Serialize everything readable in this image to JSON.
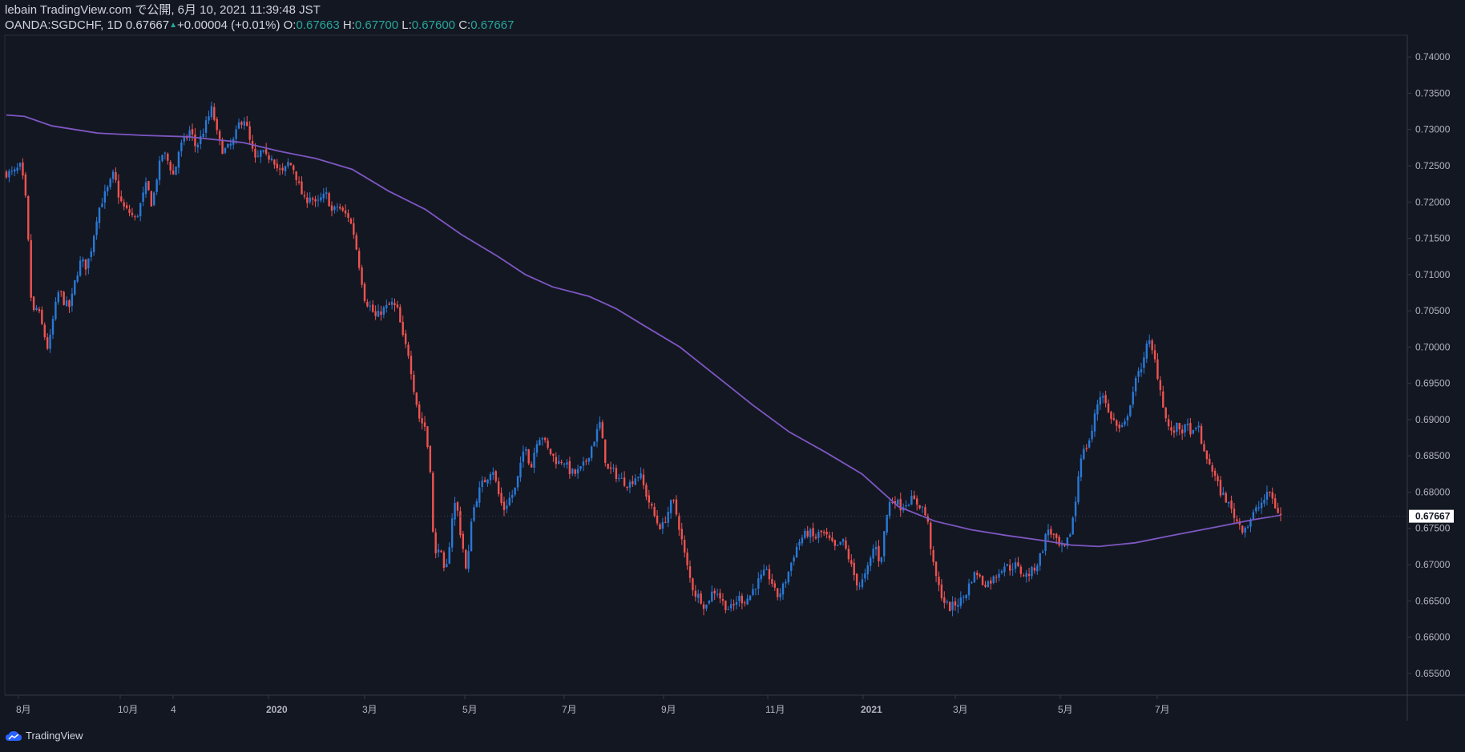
{
  "header": {
    "publish_line": "lebain TradingView.com で公開, 6月 10, 2021 11:39:48 JST",
    "symbol": "OANDA:SGDCHF, 1D",
    "last": "0.67667",
    "change": "+0.00004 (+0.01%)",
    "o_label": "O:",
    "o": "0.67663",
    "h_label": "H:",
    "h": "0.67700",
    "l_label": "L:",
    "l": "0.67600",
    "c_label": "C:",
    "c": "0.67667"
  },
  "footer": {
    "brand": "TradingView"
  },
  "colors": {
    "background": "#131722",
    "up": "#2979d6",
    "down": "#ef5350",
    "ma": "#7e57c2",
    "price_tag": "#ffffff"
  },
  "chart_data": {
    "type": "candlestick",
    "y_range": [
      0.652,
      0.743
    ],
    "y_ticks": [
      "0.74000",
      "0.73500",
      "0.73000",
      "0.72500",
      "0.72000",
      "0.71500",
      "0.71000",
      "0.70500",
      "0.70000",
      "0.69500",
      "0.69000",
      "0.68500",
      "0.68000",
      "0.67500",
      "0.67000",
      "0.66500",
      "0.66000",
      "0.65500"
    ],
    "x_labels": [
      "8月",
      "10月",
      "4",
      "2020",
      "3月",
      "5月",
      "7月",
      "9月",
      "11月",
      "2021",
      "3月",
      "5月",
      "7月"
    ],
    "last_price": "0.67667",
    "close_path": [
      [
        0,
        0.724
      ],
      [
        8,
        0.724
      ],
      [
        16,
        0.725
      ],
      [
        22,
        0.7195
      ],
      [
        28,
        0.7045
      ],
      [
        34,
        0.7055
      ],
      [
        40,
        0.7025
      ],
      [
        46,
        0.6995
      ],
      [
        52,
        0.7045
      ],
      [
        58,
        0.708
      ],
      [
        64,
        0.706
      ],
      [
        70,
        0.7055
      ],
      [
        76,
        0.7095
      ],
      [
        82,
        0.712
      ],
      [
        88,
        0.711
      ],
      [
        94,
        0.714
      ],
      [
        100,
        0.7185
      ],
      [
        106,
        0.7205
      ],
      [
        112,
        0.722
      ],
      [
        118,
        0.724
      ],
      [
        124,
        0.7205
      ],
      [
        130,
        0.719
      ],
      [
        136,
        0.7185
      ],
      [
        142,
        0.7175
      ],
      [
        148,
        0.72
      ],
      [
        154,
        0.7225
      ],
      [
        160,
        0.7195
      ],
      [
        166,
        0.724
      ],
      [
        172,
        0.727
      ],
      [
        178,
        0.7255
      ],
      [
        184,
        0.7235
      ],
      [
        190,
        0.7275
      ],
      [
        196,
        0.7285
      ],
      [
        202,
        0.73
      ],
      [
        208,
        0.7275
      ],
      [
        214,
        0.729
      ],
      [
        220,
        0.731
      ],
      [
        226,
        0.733
      ],
      [
        232,
        0.729
      ],
      [
        238,
        0.727
      ],
      [
        244,
        0.7275
      ],
      [
        250,
        0.7285
      ],
      [
        256,
        0.731
      ],
      [
        262,
        0.7315
      ],
      [
        268,
        0.728
      ],
      [
        274,
        0.7255
      ],
      [
        280,
        0.727
      ],
      [
        286,
        0.726
      ],
      [
        292,
        0.7265
      ],
      [
        298,
        0.7245
      ],
      [
        304,
        0.724
      ],
      [
        310,
        0.7255
      ],
      [
        316,
        0.7245
      ],
      [
        322,
        0.722
      ],
      [
        328,
        0.72
      ],
      [
        334,
        0.721
      ],
      [
        340,
        0.7195
      ],
      [
        346,
        0.7205
      ],
      [
        352,
        0.721
      ],
      [
        358,
        0.7185
      ],
      [
        364,
        0.7195
      ],
      [
        370,
        0.7185
      ],
      [
        376,
        0.718
      ],
      [
        382,
        0.7155
      ],
      [
        388,
        0.711
      ],
      [
        394,
        0.7065
      ],
      [
        400,
        0.7055
      ],
      [
        406,
        0.704
      ],
      [
        412,
        0.705
      ],
      [
        418,
        0.7055
      ],
      [
        424,
        0.706
      ],
      [
        430,
        0.705
      ],
      [
        436,
        0.701
      ],
      [
        442,
        0.699
      ],
      [
        448,
        0.694
      ],
      [
        454,
        0.69
      ],
      [
        460,
        0.689
      ],
      [
        466,
        0.683
      ],
      [
        470,
        0.67
      ],
      [
        474,
        0.673
      ],
      [
        478,
        0.671
      ],
      [
        482,
        0.668
      ],
      [
        486,
        0.672
      ],
      [
        490,
        0.677
      ],
      [
        494,
        0.679
      ],
      [
        498,
        0.675
      ],
      [
        502,
        0.672
      ],
      [
        506,
        0.668
      ],
      [
        510,
        0.676
      ],
      [
        516,
        0.679
      ],
      [
        522,
        0.681
      ],
      [
        528,
        0.682
      ],
      [
        534,
        0.6835
      ],
      [
        540,
        0.68
      ],
      [
        546,
        0.6775
      ],
      [
        552,
        0.679
      ],
      [
        558,
        0.68
      ],
      [
        564,
        0.683
      ],
      [
        570,
        0.687
      ],
      [
        576,
        0.683
      ],
      [
        582,
        0.687
      ],
      [
        588,
        0.688
      ],
      [
        594,
        0.686
      ],
      [
        600,
        0.685
      ],
      [
        606,
        0.684
      ],
      [
        612,
        0.6845
      ],
      [
        618,
        0.683
      ],
      [
        624,
        0.6825
      ],
      [
        630,
        0.683
      ],
      [
        636,
        0.684
      ],
      [
        642,
        0.686
      ],
      [
        648,
        0.688
      ],
      [
        652,
        0.6895
      ],
      [
        656,
        0.686
      ],
      [
        660,
        0.683
      ],
      [
        666,
        0.683
      ],
      [
        672,
        0.682
      ],
      [
        678,
        0.6815
      ],
      [
        684,
        0.681
      ],
      [
        690,
        0.682
      ],
      [
        696,
        0.6825
      ],
      [
        702,
        0.68
      ],
      [
        708,
        0.678
      ],
      [
        714,
        0.676
      ],
      [
        720,
        0.675
      ],
      [
        726,
        0.677
      ],
      [
        732,
        0.679
      ],
      [
        738,
        0.676
      ],
      [
        744,
        0.672
      ],
      [
        750,
        0.6685
      ],
      [
        756,
        0.666
      ],
      [
        762,
        0.6655
      ],
      [
        768,
        0.664
      ],
      [
        774,
        0.666
      ],
      [
        780,
        0.6665
      ],
      [
        786,
        0.665
      ],
      [
        792,
        0.664
      ],
      [
        798,
        0.664
      ],
      [
        804,
        0.6655
      ],
      [
        810,
        0.665
      ],
      [
        816,
        0.6655
      ],
      [
        822,
        0.667
      ],
      [
        828,
        0.668
      ],
      [
        834,
        0.669
      ],
      [
        840,
        0.668
      ],
      [
        846,
        0.6655
      ],
      [
        852,
        0.6665
      ],
      [
        858,
        0.6685
      ],
      [
        864,
        0.671
      ],
      [
        870,
        0.673
      ],
      [
        876,
        0.674
      ],
      [
        882,
        0.6745
      ],
      [
        888,
        0.6735
      ],
      [
        894,
        0.6745
      ],
      [
        900,
        0.674
      ],
      [
        906,
        0.673
      ],
      [
        912,
        0.672
      ],
      [
        918,
        0.6735
      ],
      [
        924,
        0.6715
      ],
      [
        930,
        0.669
      ],
      [
        936,
        0.667
      ],
      [
        942,
        0.668
      ],
      [
        948,
        0.67
      ],
      [
        954,
        0.673
      ],
      [
        960,
        0.67
      ],
      [
        966,
        0.676
      ],
      [
        970,
        0.6785
      ],
      [
        976,
        0.679
      ],
      [
        982,
        0.678
      ],
      [
        988,
        0.6785
      ],
      [
        994,
        0.679
      ],
      [
        1000,
        0.6785
      ],
      [
        1006,
        0.678
      ],
      [
        1012,
        0.676
      ],
      [
        1018,
        0.67
      ],
      [
        1024,
        0.667
      ],
      [
        1030,
        0.665
      ],
      [
        1036,
        0.664
      ],
      [
        1042,
        0.6645
      ],
      [
        1048,
        0.665
      ],
      [
        1054,
        0.666
      ],
      [
        1060,
        0.668
      ],
      [
        1066,
        0.669
      ],
      [
        1072,
        0.6675
      ],
      [
        1078,
        0.6675
      ],
      [
        1084,
        0.668
      ],
      [
        1090,
        0.669
      ],
      [
        1096,
        0.67
      ],
      [
        1102,
        0.6695
      ],
      [
        1108,
        0.67
      ],
      [
        1114,
        0.669
      ],
      [
        1120,
        0.6685
      ],
      [
        1126,
        0.669
      ],
      [
        1132,
        0.67
      ],
      [
        1138,
        0.672
      ],
      [
        1144,
        0.675
      ],
      [
        1150,
        0.674
      ],
      [
        1156,
        0.6725
      ],
      [
        1162,
        0.672
      ],
      [
        1168,
        0.674
      ],
      [
        1174,
        0.678
      ],
      [
        1180,
        0.685
      ],
      [
        1186,
        0.686
      ],
      [
        1192,
        0.688
      ],
      [
        1198,
        0.692
      ],
      [
        1204,
        0.694
      ],
      [
        1210,
        0.691
      ],
      [
        1216,
        0.69
      ],
      [
        1222,
        0.6885
      ],
      [
        1228,
        0.689
      ],
      [
        1234,
        0.692
      ],
      [
        1240,
        0.695
      ],
      [
        1246,
        0.697
      ],
      [
        1252,
        0.7
      ],
      [
        1256,
        0.7005
      ],
      [
        1262,
        0.698
      ],
      [
        1268,
        0.694
      ],
      [
        1274,
        0.69
      ],
      [
        1280,
        0.688
      ],
      [
        1286,
        0.689
      ],
      [
        1292,
        0.6885
      ],
      [
        1298,
        0.689
      ],
      [
        1304,
        0.688
      ],
      [
        1310,
        0.689
      ],
      [
        1316,
        0.685
      ],
      [
        1322,
        0.684
      ],
      [
        1328,
        0.682
      ],
      [
        1334,
        0.68
      ],
      [
        1340,
        0.679
      ],
      [
        1346,
        0.6775
      ],
      [
        1352,
        0.676
      ],
      [
        1358,
        0.675
      ],
      [
        1364,
        0.6755
      ],
      [
        1370,
        0.677
      ],
      [
        1376,
        0.678
      ],
      [
        1382,
        0.679
      ],
      [
        1388,
        0.68
      ],
      [
        1394,
        0.678
      ],
      [
        1400,
        0.6767
      ]
    ],
    "ma_path": [
      [
        0,
        0.732
      ],
      [
        20,
        0.7318
      ],
      [
        50,
        0.7305
      ],
      [
        100,
        0.7295
      ],
      [
        150,
        0.7292
      ],
      [
        200,
        0.729
      ],
      [
        260,
        0.7282
      ],
      [
        300,
        0.727
      ],
      [
        340,
        0.726
      ],
      [
        380,
        0.7245
      ],
      [
        420,
        0.7215
      ],
      [
        460,
        0.719
      ],
      [
        500,
        0.7155
      ],
      [
        540,
        0.7125
      ],
      [
        570,
        0.71
      ],
      [
        600,
        0.7083
      ],
      [
        640,
        0.707
      ],
      [
        670,
        0.7053
      ],
      [
        700,
        0.703
      ],
      [
        740,
        0.7
      ],
      [
        780,
        0.696
      ],
      [
        820,
        0.692
      ],
      [
        860,
        0.6883
      ],
      [
        900,
        0.6855
      ],
      [
        940,
        0.6825
      ],
      [
        980,
        0.678
      ],
      [
        1020,
        0.676
      ],
      [
        1060,
        0.6748
      ],
      [
        1100,
        0.674
      ],
      [
        1140,
        0.6733
      ],
      [
        1170,
        0.6727
      ],
      [
        1200,
        0.6725
      ],
      [
        1240,
        0.673
      ],
      [
        1280,
        0.674
      ],
      [
        1330,
        0.6752
      ],
      [
        1370,
        0.6762
      ],
      [
        1400,
        0.6768
      ]
    ]
  }
}
